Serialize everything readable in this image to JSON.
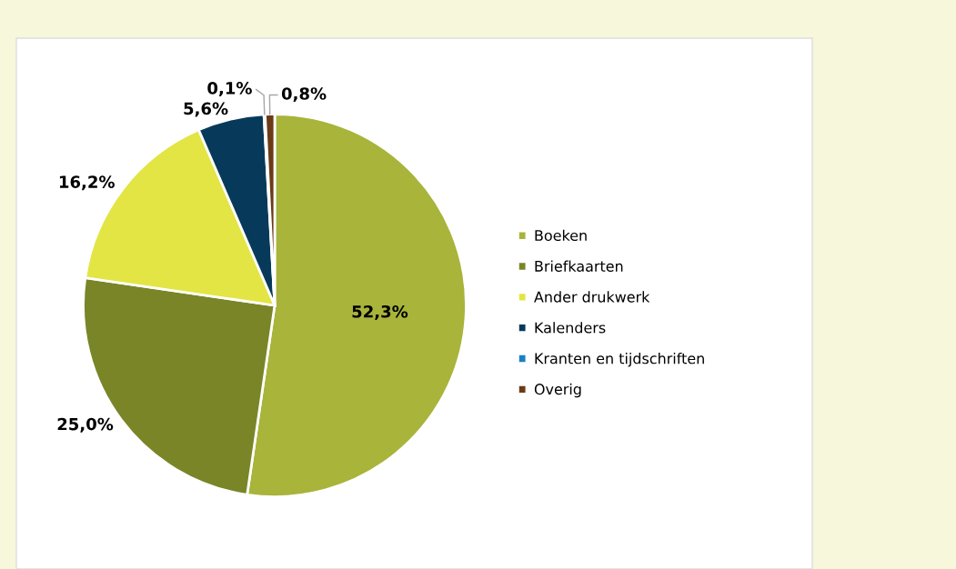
{
  "chart_data": {
    "type": "pie",
    "categories": [
      "Boeken",
      "Briefkaarten",
      "Ander drukwerk",
      "Kalenders",
      "Kranten en tijdschriften",
      "Overig"
    ],
    "values": [
      52.3,
      25.0,
      16.2,
      5.6,
      0.1,
      0.8
    ],
    "colors": [
      "#a8b43a",
      "#7a8528",
      "#e2e544",
      "#073a5a",
      "#1a80c4",
      "#6b3a17"
    ],
    "value_labels": [
      "52,3%",
      "25,0%",
      "16,2%",
      "5,6%",
      "0,1%",
      "0,8%"
    ],
    "legend": "right"
  }
}
